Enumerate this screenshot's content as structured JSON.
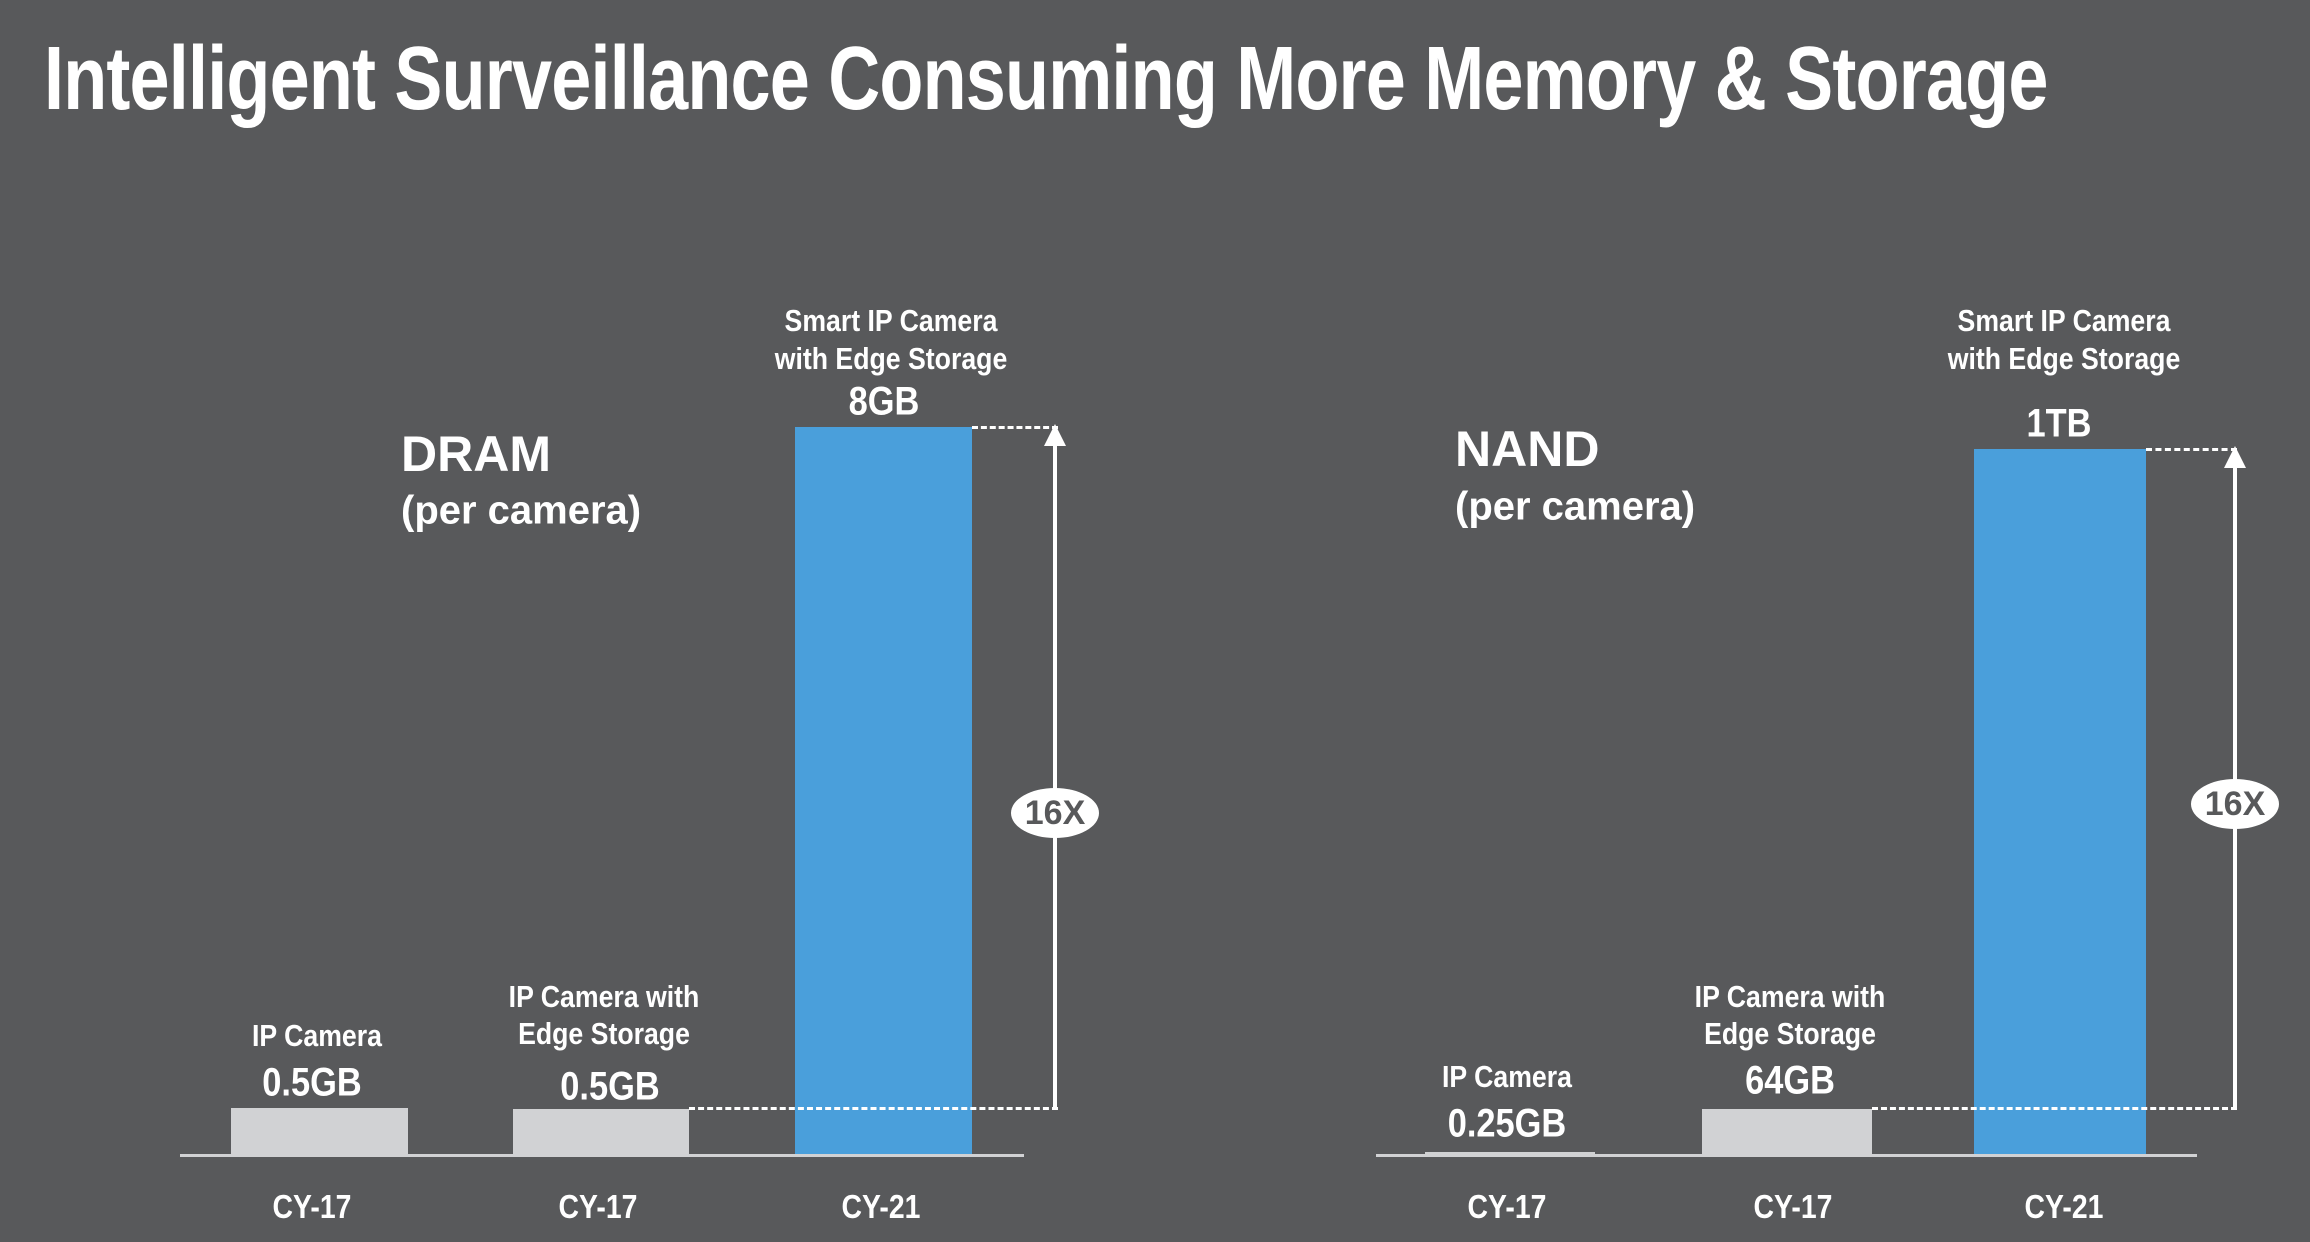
{
  "title": "Intelligent Surveillance Consuming More Memory & Storage",
  "colors": {
    "background": "#58595b",
    "bar_gray": "#d1d2d4",
    "bar_blue": "#4a9fdb"
  },
  "chart_data": [
    {
      "type": "bar",
      "title": "DRAM",
      "subtitle": "(per camera)",
      "categories": [
        "CY-17",
        "CY-17",
        "CY-21"
      ],
      "bar_labels": [
        [
          "IP Camera"
        ],
        [
          "IP Camera with",
          "Edge Storage"
        ],
        [
          "Smart IP Camera",
          "with Edge Storage"
        ]
      ],
      "value_labels": [
        "0.5GB",
        "0.5GB",
        "8GB"
      ],
      "values": [
        0.5,
        0.5,
        8
      ],
      "unit": "GB",
      "growth_annotation": "16X"
    },
    {
      "type": "bar",
      "title": "NAND",
      "subtitle": "(per camera)",
      "categories": [
        "CY-17",
        "CY-17",
        "CY-21"
      ],
      "bar_labels": [
        [
          "IP Camera"
        ],
        [
          "IP Camera with",
          "Edge Storage"
        ],
        [
          "Smart IP Camera",
          "with Edge Storage"
        ]
      ],
      "value_labels": [
        "0.25GB",
        "64GB",
        "1TB"
      ],
      "values": [
        0.25,
        64,
        1024
      ],
      "unit": "GB",
      "growth_annotation": "16X"
    }
  ]
}
